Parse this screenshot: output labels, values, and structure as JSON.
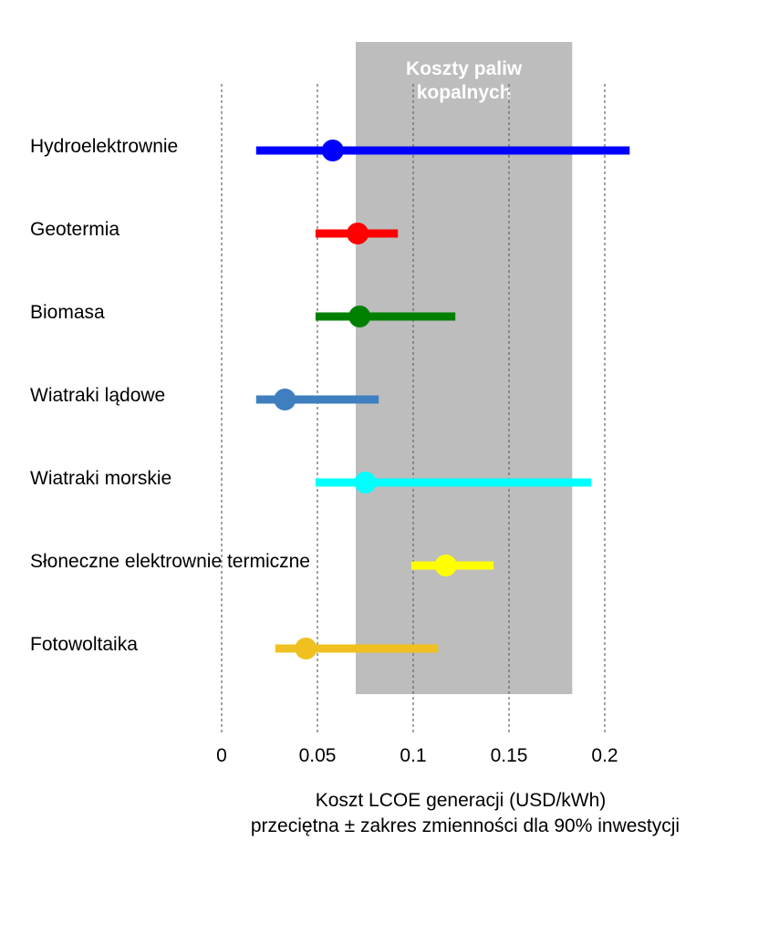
{
  "chart_data": {
    "type": "range-dot",
    "title": "",
    "xlabel": "Koszt LCOE generacji (USD/kWh)",
    "xlabel_line2": "przeciętna ± zakres zmienności dla 90% inwestycji",
    "ylabel": "",
    "xlim": [
      0,
      0.2
    ],
    "x_ticks": [
      0,
      0.05,
      0.1,
      0.15,
      0.2
    ],
    "x_tick_labels": [
      "0",
      "0.05",
      "0.1",
      "0.15",
      "0.2"
    ],
    "grid": "vertical dotted",
    "shaded_band": {
      "label_line1": "Koszty paliw",
      "label_line2": "kopalnych",
      "from": 0.07,
      "to": 0.183,
      "color": "#bdbdbd"
    },
    "series": [
      {
        "category": "Hydroelektrownie",
        "low": 0.018,
        "high": 0.213,
        "mean": 0.058,
        "color": "#0000ff"
      },
      {
        "category": "Geotermia",
        "low": 0.049,
        "high": 0.092,
        "mean": 0.071,
        "color": "#ff0000"
      },
      {
        "category": "Biomasa",
        "low": 0.049,
        "high": 0.122,
        "mean": 0.072,
        "color": "#008000"
      },
      {
        "category": "Wiatraki lądowe",
        "low": 0.018,
        "high": 0.082,
        "mean": 0.033,
        "color": "#3f7fbf"
      },
      {
        "category": "Wiatraki morskie",
        "low": 0.049,
        "high": 0.193,
        "mean": 0.075,
        "color": "#00ffff"
      },
      {
        "category": "Słoneczne elektrownie termiczne",
        "low": 0.099,
        "high": 0.142,
        "mean": 0.117,
        "color": "#ffff00"
      },
      {
        "category": "Fotowoltaika",
        "low": 0.028,
        "high": 0.113,
        "mean": 0.044,
        "color": "#f0c020"
      }
    ]
  }
}
